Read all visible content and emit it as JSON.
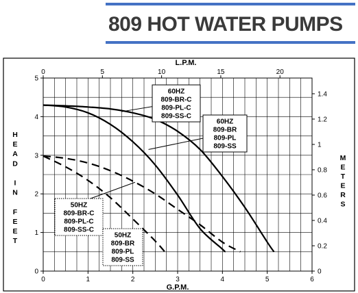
{
  "header": {
    "title": "809 HOT WATER PUMPS",
    "accent_color": "#4472c4"
  },
  "chart_data": {
    "type": "line",
    "title": "",
    "xlabel": "G.P.M.",
    "ylabel": "HEAD IN FEET",
    "x2label": "L.P.M.",
    "y2label": "METERS",
    "xlim": [
      0,
      6
    ],
    "ylim": [
      0,
      5
    ],
    "x2lim": [
      0,
      22.71
    ],
    "y2lim": [
      0,
      1.524
    ],
    "xticks": [
      "0",
      "1",
      "2",
      "3",
      "4",
      "5",
      "6"
    ],
    "yticks": [
      "0",
      "1",
      "2",
      "3",
      "4",
      "5"
    ],
    "x2ticks": [
      "0",
      "5",
      "10",
      "15",
      "20"
    ],
    "y2ticks": [
      "0",
      "0.2",
      "0.4",
      "0.6",
      "0.8",
      "1",
      "1.2",
      "1.4"
    ],
    "grid": true,
    "series": [
      {
        "name": "60HZ 809-BR-C 809-PL-C 809-SS-C",
        "style": "solid",
        "x": [
          0,
          0.5,
          1,
          1.5,
          2,
          2.5,
          3,
          3.5,
          4,
          4.5,
          5,
          5.15
        ],
        "y": [
          4.3,
          4.28,
          4.25,
          4.2,
          4.1,
          3.93,
          3.62,
          3.15,
          2.45,
          1.65,
          0.75,
          0.5
        ]
      },
      {
        "name": "60HZ 809-BR 809-PL 809-SS",
        "style": "solid",
        "x": [
          0,
          0.5,
          1,
          1.5,
          2,
          2.5,
          3,
          3.5,
          4,
          4.05
        ],
        "y": [
          4.3,
          4.25,
          4.1,
          3.8,
          3.35,
          2.75,
          1.97,
          1.1,
          0.57,
          0.5
        ]
      },
      {
        "name": "50HZ 809-BR-C 809-PL-C 809-SS-C",
        "style": "dashed",
        "x": [
          0,
          0.5,
          1,
          1.5,
          2,
          2.5,
          3,
          3.5,
          4,
          4.4
        ],
        "y": [
          2.98,
          2.92,
          2.8,
          2.6,
          2.33,
          2.0,
          1.6,
          1.2,
          0.75,
          0.5
        ]
      },
      {
        "name": "50HZ 809-BR 809-PL 809-SS",
        "style": "dashed",
        "x": [
          0,
          0.5,
          1,
          1.5,
          2,
          2.5,
          2.75
        ],
        "y": [
          2.98,
          2.7,
          2.35,
          1.9,
          1.35,
          0.78,
          0.45
        ]
      }
    ],
    "annotations": [
      {
        "lines": [
          "60HZ",
          "809-BR-C",
          "809-PL-C",
          "809-SS-C"
        ],
        "border": "solid"
      },
      {
        "lines": [
          "60HZ",
          "809-BR",
          "809-PL",
          "809-SS"
        ],
        "border": "solid"
      },
      {
        "lines": [
          "50HZ",
          "809-BR-C",
          "809-PL-C",
          "809-SS-C"
        ],
        "border": "dotted"
      },
      {
        "lines": [
          "50HZ",
          "809-BR",
          "809-PL",
          "809-SS"
        ],
        "border": "dotted"
      }
    ]
  }
}
